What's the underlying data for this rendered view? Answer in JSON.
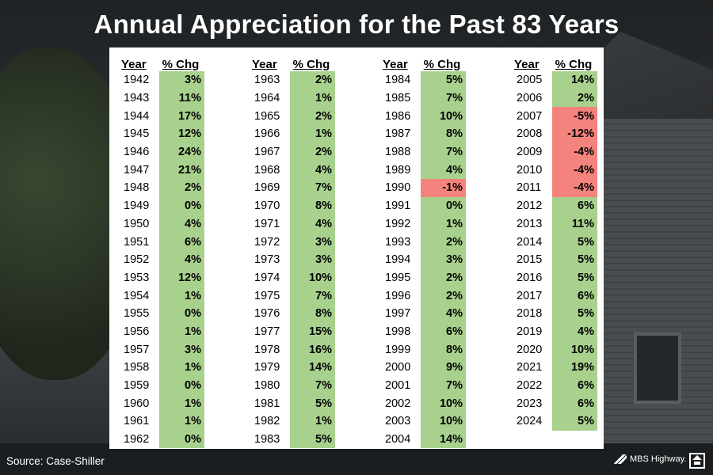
{
  "title": "Annual Appreciation for the Past 83 Years",
  "source": "Source: Case-Shiller",
  "logo_text": "MBS Highway.",
  "chart_data": {
    "type": "table",
    "title": "Annual Appreciation for the Past 83 Years",
    "columns": [
      "Year",
      "% Chg"
    ],
    "colors": {
      "positive": "#a9d18e",
      "negative": "#f4827d"
    },
    "blocks": [
      [
        [
          "1942",
          "3%"
        ],
        [
          "1943",
          "11%"
        ],
        [
          "1944",
          "17%"
        ],
        [
          "1945",
          "12%"
        ],
        [
          "1946",
          "24%"
        ],
        [
          "1947",
          "21%"
        ],
        [
          "1948",
          "2%"
        ],
        [
          "1949",
          "0%"
        ],
        [
          "1950",
          "4%"
        ],
        [
          "1951",
          "6%"
        ],
        [
          "1952",
          "4%"
        ],
        [
          "1953",
          "12%"
        ],
        [
          "1954",
          "1%"
        ],
        [
          "1955",
          "0%"
        ],
        [
          "1956",
          "1%"
        ],
        [
          "1957",
          "3%"
        ],
        [
          "1958",
          "1%"
        ],
        [
          "1959",
          "0%"
        ],
        [
          "1960",
          "1%"
        ],
        [
          "1961",
          "1%"
        ],
        [
          "1962",
          "0%"
        ]
      ],
      [
        [
          "1963",
          "2%"
        ],
        [
          "1964",
          "1%"
        ],
        [
          "1965",
          "2%"
        ],
        [
          "1966",
          "1%"
        ],
        [
          "1967",
          "2%"
        ],
        [
          "1968",
          "4%"
        ],
        [
          "1969",
          "7%"
        ],
        [
          "1970",
          "8%"
        ],
        [
          "1971",
          "4%"
        ],
        [
          "1972",
          "3%"
        ],
        [
          "1973",
          "3%"
        ],
        [
          "1974",
          "10%"
        ],
        [
          "1975",
          "7%"
        ],
        [
          "1976",
          "8%"
        ],
        [
          "1977",
          "15%"
        ],
        [
          "1978",
          "16%"
        ],
        [
          "1979",
          "14%"
        ],
        [
          "1980",
          "7%"
        ],
        [
          "1981",
          "5%"
        ],
        [
          "1982",
          "1%"
        ],
        [
          "1983",
          "5%"
        ]
      ],
      [
        [
          "1984",
          "5%"
        ],
        [
          "1985",
          "7%"
        ],
        [
          "1986",
          "10%"
        ],
        [
          "1987",
          "8%"
        ],
        [
          "1988",
          "7%"
        ],
        [
          "1989",
          "4%"
        ],
        [
          "1990",
          "-1%"
        ],
        [
          "1991",
          "0%"
        ],
        [
          "1992",
          "1%"
        ],
        [
          "1993",
          "2%"
        ],
        [
          "1994",
          "3%"
        ],
        [
          "1995",
          "2%"
        ],
        [
          "1996",
          "2%"
        ],
        [
          "1997",
          "4%"
        ],
        [
          "1998",
          "6%"
        ],
        [
          "1999",
          "8%"
        ],
        [
          "2000",
          "9%"
        ],
        [
          "2001",
          "7%"
        ],
        [
          "2002",
          "10%"
        ],
        [
          "2003",
          "10%"
        ],
        [
          "2004",
          "14%"
        ]
      ],
      [
        [
          "2005",
          "14%"
        ],
        [
          "2006",
          "2%"
        ],
        [
          "2007",
          "-5%"
        ],
        [
          "2008",
          "-12%"
        ],
        [
          "2009",
          "-4%"
        ],
        [
          "2010",
          "-4%"
        ],
        [
          "2011",
          "-4%"
        ],
        [
          "2012",
          "6%"
        ],
        [
          "2013",
          "11%"
        ],
        [
          "2014",
          "5%"
        ],
        [
          "2015",
          "5%"
        ],
        [
          "2016",
          "5%"
        ],
        [
          "2017",
          "6%"
        ],
        [
          "2018",
          "5%"
        ],
        [
          "2019",
          "4%"
        ],
        [
          "2020",
          "10%"
        ],
        [
          "2021",
          "19%"
        ],
        [
          "2022",
          "6%"
        ],
        [
          "2023",
          "6%"
        ],
        [
          "2024",
          "5%"
        ]
      ]
    ]
  }
}
